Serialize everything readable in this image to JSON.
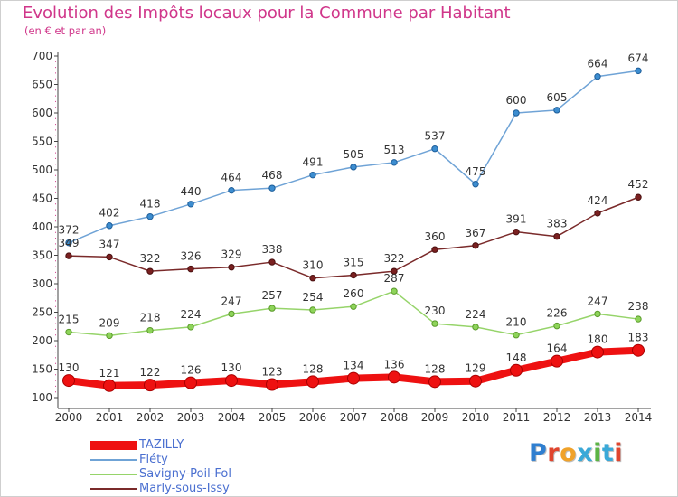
{
  "title": "Evolution des Impôts locaux pour la Commune par Habitant",
  "subtitle": "(en € et par an)",
  "logo": {
    "text": "Proxiti",
    "letter_colors": [
      "#2f7fd0",
      "#e0452e",
      "#f0a22a",
      "#3aa9d8",
      "#5cb445",
      "#3aa9d8",
      "#e0452e"
    ]
  },
  "chart_data": {
    "type": "line",
    "x": [
      "2000",
      "2001",
      "2002",
      "2003",
      "2004",
      "2005",
      "2006",
      "2007",
      "2008",
      "2009",
      "2010",
      "2011",
      "2012",
      "2013",
      "2014"
    ],
    "ylim": [
      100,
      700
    ],
    "yticks": [
      "100",
      "150",
      "200",
      "250",
      "300",
      "350",
      "400",
      "450",
      "500",
      "550",
      "600",
      "650",
      "700"
    ],
    "grid": false,
    "legend_position": "bottom-left",
    "series": [
      {
        "name": "TAZILLY",
        "color": "#ee1111",
        "values": [
          130,
          121,
          122,
          126,
          130,
          123,
          128,
          134,
          136,
          128,
          129,
          148,
          164,
          180,
          183
        ],
        "labels": [
          "130",
          "121",
          "122",
          "126",
          "130",
          "123",
          "128",
          "134",
          "136",
          "128",
          "129",
          "148",
          "164",
          "180",
          "183"
        ]
      },
      {
        "name": "Fléty",
        "color": "#6fa3d6",
        "values": [
          372,
          402,
          418,
          440,
          464,
          468,
          491,
          505,
          513,
          537,
          475,
          600,
          605,
          664,
          674
        ],
        "labels": [
          "372",
          "402",
          "418",
          "440",
          "464",
          "468",
          "491",
          "505",
          "513",
          "537",
          "475",
          "600",
          "605",
          "664",
          "674"
        ]
      },
      {
        "name": "Savigny-Poil-Fol",
        "color": "#96d46a",
        "values": [
          215,
          209,
          218,
          224,
          247,
          257,
          254,
          260,
          287,
          230,
          224,
          210,
          226,
          247,
          238
        ],
        "labels": [
          "215",
          "209",
          "218",
          "224",
          "247",
          "257",
          "254",
          "260",
          "287",
          "230",
          "224",
          "210",
          "226",
          "247",
          "238"
        ]
      },
      {
        "name": "Marly-sous-Issy",
        "color": "#7a2a2a",
        "values": [
          349,
          347,
          322,
          326,
          329,
          338,
          310,
          315,
          322,
          360,
          367,
          391,
          383,
          424,
          452
        ],
        "labels": [
          "349",
          "347",
          "322",
          "326",
          "329",
          "338",
          "310",
          "315",
          "322",
          "360",
          "367",
          "391",
          "383",
          "424",
          "452"
        ]
      }
    ]
  }
}
